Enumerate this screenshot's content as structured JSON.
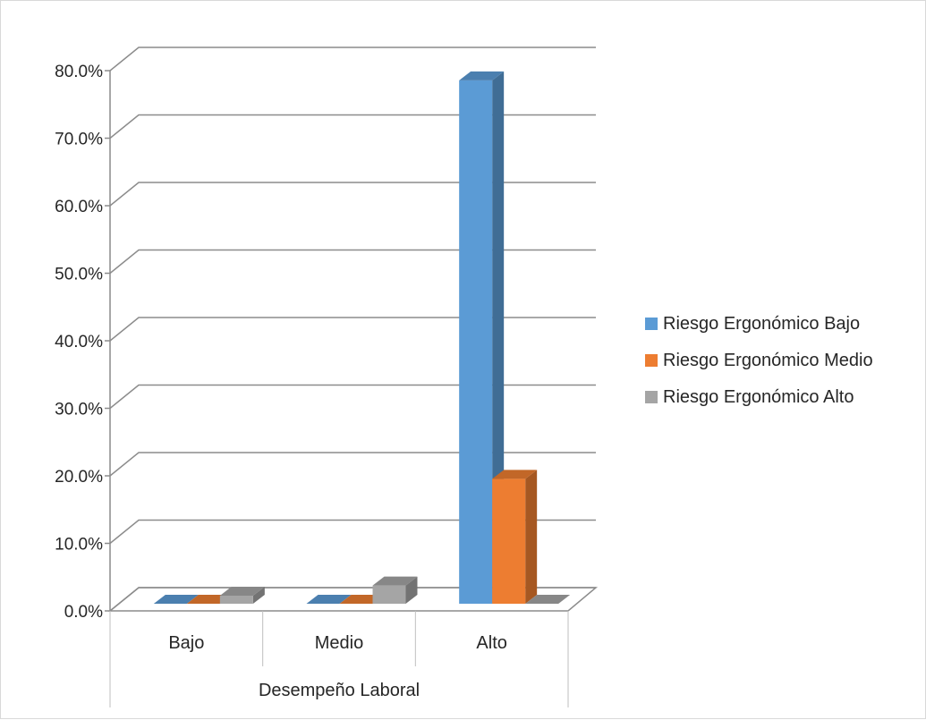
{
  "chart_data": {
    "type": "bar",
    "three_d": true,
    "title": "",
    "xlabel": "Desempeño Laboral",
    "ylabel": "",
    "categories": [
      "Bajo",
      "Medio",
      "Alto"
    ],
    "series": [
      {
        "name": "Riesgo Ergonómico Bajo",
        "color": "#5b9bd5",
        "values": [
          0.0,
          0.0,
          77.5
        ]
      },
      {
        "name": "Riesgo Ergonómico Medio",
        "color": "#ed7d31",
        "values": [
          0.0,
          0.0,
          18.5
        ]
      },
      {
        "name": "Riesgo Ergonómico Alto",
        "color": "#a5a5a5",
        "values": [
          1.2,
          2.7,
          0.0
        ]
      }
    ],
    "ylim": [
      0,
      80
    ],
    "yticks": [
      "0.0%",
      "10.0%",
      "20.0%",
      "30.0%",
      "40.0%",
      "50.0%",
      "60.0%",
      "70.0%",
      "80.0%"
    ],
    "grid": true,
    "legend": "right"
  }
}
